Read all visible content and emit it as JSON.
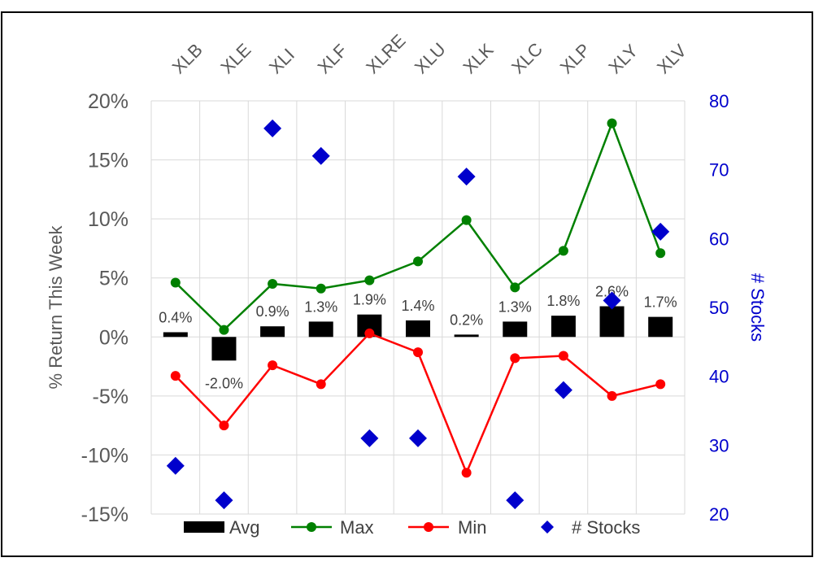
{
  "chart_data": {
    "type": "bar",
    "categories": [
      "XLB",
      "XLE",
      "XLI",
      "XLF",
      "XLRE",
      "XLU",
      "XLK",
      "XLC",
      "XLP",
      "XLY",
      "XLV"
    ],
    "series": [
      {
        "name": "Avg",
        "type": "bar",
        "axis": "left",
        "color": "#000000",
        "values": [
          0.4,
          -2.0,
          0.9,
          1.3,
          1.9,
          1.4,
          0.2,
          1.3,
          1.8,
          2.6,
          1.7
        ],
        "labels": [
          "0.4%",
          "-2.0%",
          "0.9%",
          "1.3%",
          "1.9%",
          "1.4%",
          "0.2%",
          "1.3%",
          "1.8%",
          "2.6%",
          "1.7%"
        ]
      },
      {
        "name": "Max",
        "type": "line",
        "axis": "left",
        "color": "#008000",
        "values": [
          4.6,
          0.6,
          4.5,
          4.1,
          4.8,
          6.4,
          9.9,
          4.2,
          7.3,
          18.1,
          7.1
        ]
      },
      {
        "name": "Min",
        "type": "line",
        "axis": "left",
        "color": "#ff0000",
        "values": [
          -3.3,
          -7.5,
          -2.4,
          -4.0,
          0.3,
          -1.3,
          -11.5,
          -1.8,
          -1.6,
          -5.0,
          -4.0
        ]
      },
      {
        "name": "# Stocks",
        "type": "scatter",
        "axis": "right",
        "color": "#0000cc",
        "values": [
          27,
          22,
          76,
          72,
          31,
          31,
          69,
          22,
          38,
          51,
          61
        ]
      }
    ],
    "ylabel": "% Return This Week",
    "y2label": "# Stocks",
    "ylim": [
      -15,
      20
    ],
    "y2lim": [
      20,
      80
    ],
    "yticks": [
      "20%",
      "15%",
      "10%",
      "5%",
      "0%",
      "-5%",
      "-10%",
      "-15%"
    ],
    "y2ticks": [
      "80",
      "70",
      "60",
      "50",
      "40",
      "30",
      "20"
    ],
    "grid": true,
    "legend": {
      "position": "bottom",
      "entries": [
        "Avg",
        "Max",
        "Min",
        "# Stocks"
      ]
    }
  }
}
